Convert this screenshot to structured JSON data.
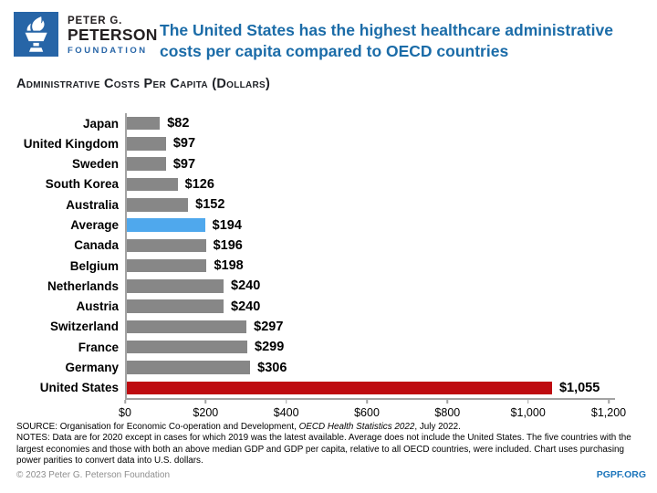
{
  "header": {
    "logo": {
      "line1": "PETER G.",
      "line2": "PETERSON",
      "line3": "FOUNDATION"
    },
    "title": "The United States has the highest healthcare administrative costs per capita compared to OECD countries"
  },
  "colors": {
    "title_blue": "#1B6CA8",
    "logo_blue": "#2765A7",
    "link_blue": "#1C75BB",
    "bar_gray": "#878787",
    "bar_average_blue": "#4FA8ED",
    "bar_us_red": "#BE0B10",
    "axis_gray": "#A3A3A3"
  },
  "chart_data": {
    "type": "bar",
    "orientation": "horizontal",
    "title": "Administrative Costs Per Capita (Dollars)",
    "categories": [
      "Japan",
      "United Kingdom",
      "Sweden",
      "South Korea",
      "Australia",
      "Average",
      "Canada",
      "Belgium",
      "Netherlands",
      "Austria",
      "Switzerland",
      "France",
      "Germany",
      "United States"
    ],
    "values": [
      82,
      97,
      97,
      126,
      152,
      194,
      196,
      198,
      240,
      240,
      297,
      299,
      306,
      1055
    ],
    "value_labels": [
      "$82",
      "$97",
      "$97",
      "$126",
      "$152",
      "$194",
      "$196",
      "$198",
      "$240",
      "$240",
      "$297",
      "$299",
      "$306",
      "$1,055"
    ],
    "colors": [
      "#878787",
      "#878787",
      "#878787",
      "#878787",
      "#878787",
      "#4FA8ED",
      "#878787",
      "#878787",
      "#878787",
      "#878787",
      "#878787",
      "#878787",
      "#878787",
      "#BE0B10"
    ],
    "xlim": [
      0,
      1200
    ],
    "x_tick_values": [
      0,
      200,
      400,
      600,
      800,
      1000,
      1200
    ],
    "x_tick_labels": [
      "$0",
      "$200",
      "$400",
      "$600",
      "$800",
      "$1,000",
      "$1,200"
    ],
    "grid": false,
    "legend": "none"
  },
  "footer": {
    "source_prefix": "SOURCE: Organisation for Economic Co-operation and Development, ",
    "source_italic": "OECD Health Statistics 2022",
    "source_suffix": ", July 2022.",
    "notes": "NOTES: Data are for 2020 except in cases for which 2019 was the latest available. Average does not include the United States. The five countries with the largest economies and those with both an above median GDP and GDP per capita, relative to all OECD countries, were included. Chart uses purchasing power parities to convert data into U.S. dollars.",
    "copyright": "© 2023 Peter G. Peterson Foundation",
    "website": "PGPF.ORG"
  }
}
